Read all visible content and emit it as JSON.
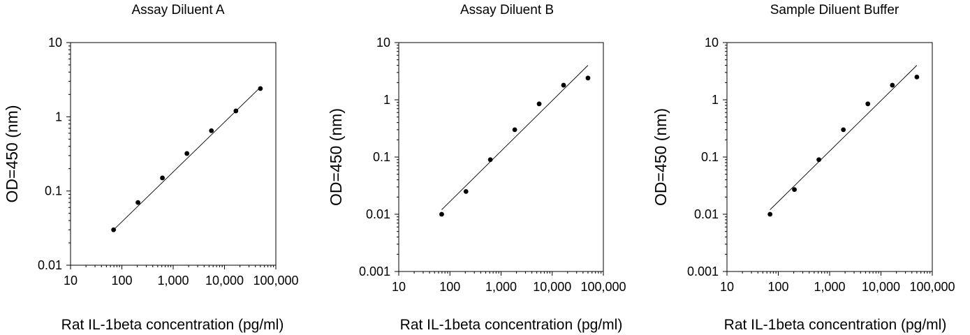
{
  "colors": {
    "axis": "#000000",
    "marker": "#000000",
    "fit_line": "#000000",
    "background": "#ffffff"
  },
  "chart_data": [
    {
      "type": "scatter",
      "title": "Assay Diluent A",
      "xlabel": "Rat IL-1beta concentration (pg/ml)",
      "ylabel": "OD=450 (nm)",
      "xscale": "log",
      "yscale": "log",
      "xlim": [
        10,
        100000
      ],
      "ylim": [
        0.01,
        10
      ],
      "xticks": [
        10,
        100,
        1000,
        10000,
        100000
      ],
      "xticklabels": [
        "10",
        "100",
        "1,000",
        "10,000",
        "100,000"
      ],
      "yticks": [
        0.01,
        0.1,
        1,
        10
      ],
      "yticklabels": [
        "0.01",
        "0.1",
        "1",
        "10"
      ],
      "grid": false,
      "legend": "none",
      "series": [
        {
          "x": [
            69,
            206,
            617,
            1852,
            5556,
            16667,
            50000
          ],
          "y": [
            0.03,
            0.07,
            0.15,
            0.32,
            0.65,
            1.2,
            2.4
          ]
        }
      ],
      "fit_line": {
        "x": [
          69,
          50000
        ],
        "y": [
          0.03,
          2.5
        ]
      }
    },
    {
      "type": "scatter",
      "title": "Assay Diluent B",
      "xlabel": "Rat IL-1beta concentration (pg/ml)",
      "ylabel": "OD=450 (nm)",
      "xscale": "log",
      "yscale": "log",
      "xlim": [
        10,
        100000
      ],
      "ylim": [
        0.001,
        10
      ],
      "xticks": [
        10,
        100,
        1000,
        10000,
        100000
      ],
      "xticklabels": [
        "10",
        "100",
        "1,000",
        "10,000",
        "100,000"
      ],
      "yticks": [
        0.001,
        0.01,
        0.1,
        1,
        10
      ],
      "yticklabels": [
        "0.001",
        "0.01",
        "0.1",
        "1",
        "10"
      ],
      "grid": false,
      "legend": "none",
      "series": [
        {
          "x": [
            69,
            206,
            617,
            1852,
            5556,
            16667,
            50000
          ],
          "y": [
            0.01,
            0.025,
            0.09,
            0.3,
            0.85,
            1.8,
            2.4
          ]
        }
      ],
      "fit_line": {
        "x": [
          69,
          50000
        ],
        "y": [
          0.012,
          4.0
        ]
      }
    },
    {
      "type": "scatter",
      "title": "Sample Diluent Buffer",
      "xlabel": "Rat IL-1beta concentration (pg/ml)",
      "ylabel": "OD=450 (nm)",
      "xscale": "log",
      "yscale": "log",
      "xlim": [
        10,
        100000
      ],
      "ylim": [
        0.001,
        10
      ],
      "xticks": [
        10,
        100,
        1000,
        10000,
        100000
      ],
      "xticklabels": [
        "10",
        "100",
        "1,000",
        "10,000",
        "100,000"
      ],
      "yticks": [
        0.001,
        0.01,
        0.1,
        1,
        10
      ],
      "yticklabels": [
        "0.001",
        "0.01",
        "0.1",
        "1",
        "10"
      ],
      "grid": false,
      "legend": "none",
      "series": [
        {
          "x": [
            69,
            206,
            617,
            1852,
            5556,
            16667,
            50000
          ],
          "y": [
            0.01,
            0.027,
            0.09,
            0.3,
            0.85,
            1.8,
            2.5
          ]
        }
      ],
      "fit_line": {
        "x": [
          69,
          50000
        ],
        "y": [
          0.012,
          4.0
        ]
      }
    }
  ]
}
